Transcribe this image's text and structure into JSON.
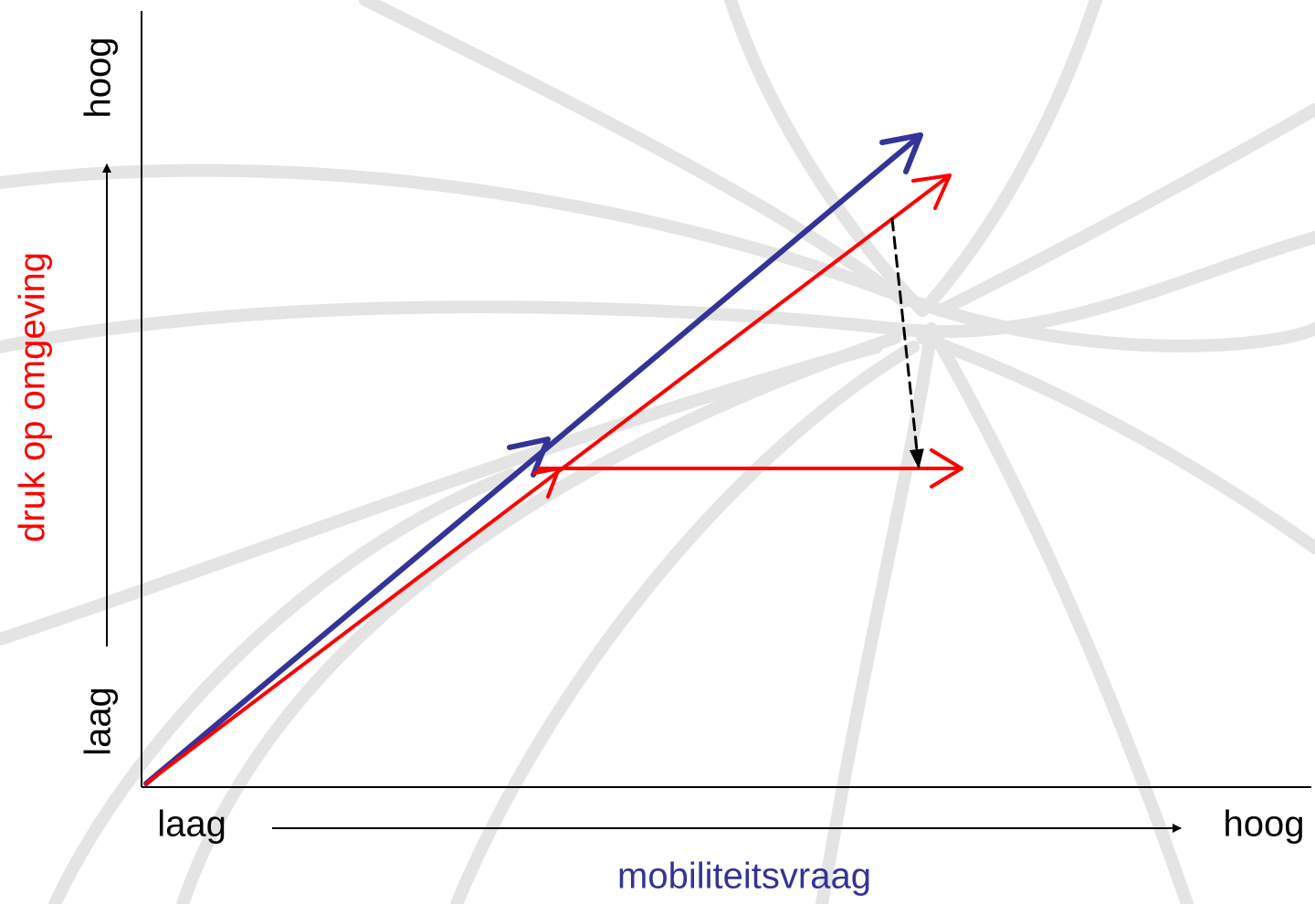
{
  "y_axis": {
    "high": "hoog",
    "low": "laag",
    "title": "druk op omgeving"
  },
  "x_axis": {
    "low": "laag",
    "high": "hoog",
    "title": "mobiliteitsvraag"
  }
}
